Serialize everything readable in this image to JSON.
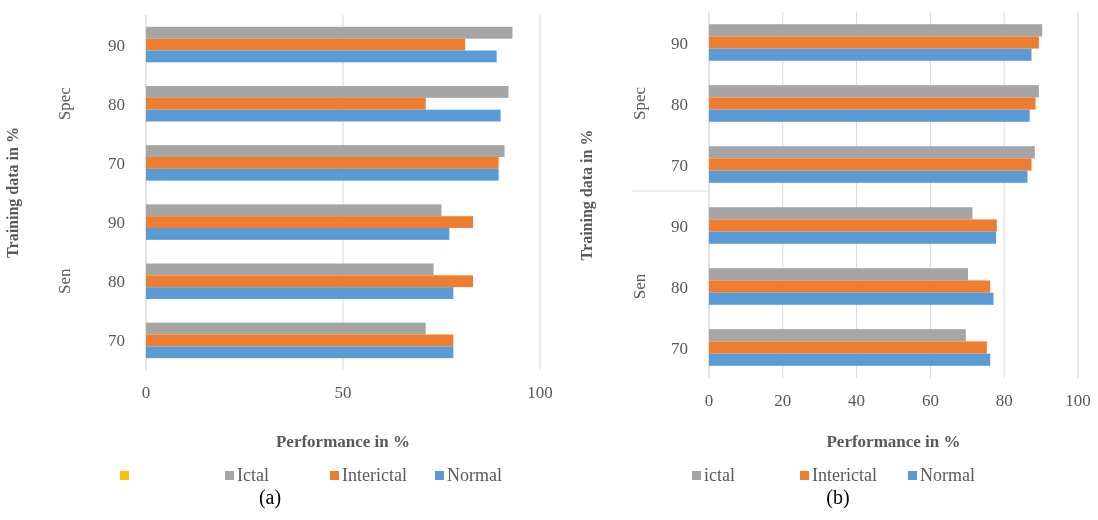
{
  "chart_data": [
    {
      "type": "bar",
      "orientation": "horizontal",
      "xlabel": "Performance in %",
      "ylabel": "Training data in %",
      "categories": [
        "90",
        "80",
        "70",
        "90",
        "80",
        "70"
      ],
      "xlim": [
        0,
        100
      ],
      "xticks": [
        0,
        50,
        100
      ],
      "grid": "x",
      "legend": "bottom",
      "annotations": [
        "Spec",
        "Sen",
        "(a)"
      ],
      "series": [
        {
          "color": "#ffc000",
          "values": [
            null,
            null,
            null,
            null,
            null,
            null
          ]
        },
        {
          "name": "Ictal",
          "color": "#a5a5a5",
          "values": [
            93,
            92,
            91,
            75,
            73,
            71
          ]
        },
        {
          "name": "Interictal",
          "color": "#ed7d31",
          "values": [
            81,
            71,
            89.5,
            83,
            83,
            78
          ]
        },
        {
          "name": "Normal",
          "color": "#5b9bd5",
          "values": [
            89,
            90,
            89.5,
            77,
            78,
            78
          ]
        }
      ]
    },
    {
      "type": "bar",
      "orientation": "horizontal",
      "xlabel": "Performance in %",
      "ylabel": "Training data in %",
      "categories": [
        "90",
        "80",
        "70",
        "90",
        "80",
        "70"
      ],
      "xlim": [
        0,
        100
      ],
      "xticks": [
        0,
        20,
        40,
        60,
        80,
        100
      ],
      "grid": "x",
      "legend": "bottom",
      "annotations": [
        "Spec",
        "Sen",
        "(b)"
      ],
      "series": [
        {
          "name": "ictal",
          "color": "#a5a5a5",
          "values": [
            90.3,
            89.4,
            88.3,
            71.4,
            70.2,
            69.6
          ]
        },
        {
          "name": "Interictal",
          "color": "#ed7d31",
          "values": [
            89.4,
            88.5,
            87.4,
            78,
            76.2,
            75.3
          ]
        },
        {
          "name": "Normal",
          "color": "#5b9bd5",
          "values": [
            87.4,
            86.9,
            86.3,
            77.8,
            77.1,
            76.2
          ]
        }
      ]
    }
  ]
}
